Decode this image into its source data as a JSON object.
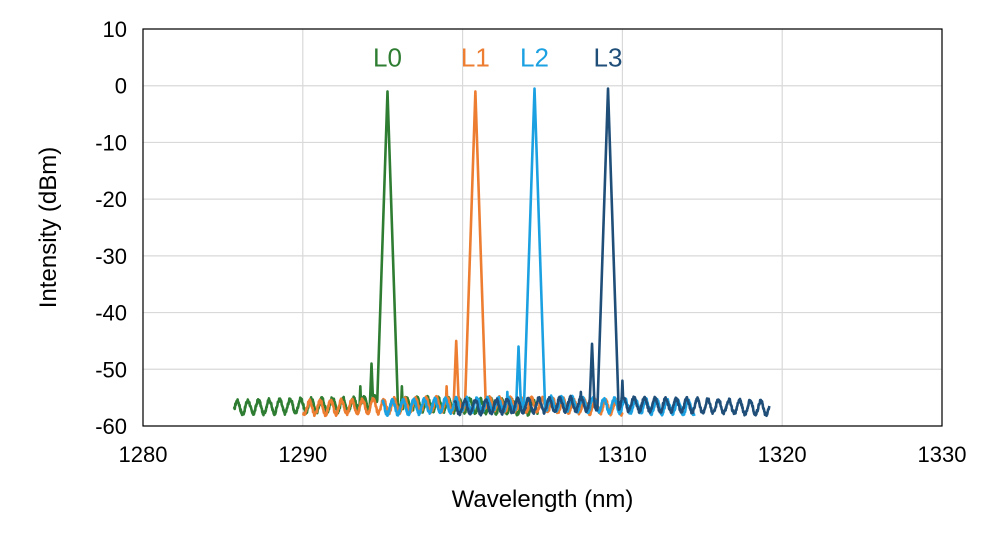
{
  "chart_data": {
    "type": "line",
    "title": "",
    "xlabel": "Wavelength (nm)",
    "ylabel": "Intensity (dBm)",
    "xlim": [
      1280,
      1330
    ],
    "ylim": [
      -60,
      10
    ],
    "xticks": [
      1280,
      1290,
      1300,
      1310,
      1320,
      1330
    ],
    "yticks": [
      10,
      0,
      -10,
      -20,
      -30,
      -40,
      -50,
      -60
    ],
    "grid": true,
    "legend": "none",
    "series": [
      {
        "name": "L0",
        "color": "#2e7d32",
        "x_range": [
          1285.7,
          1304.7
        ],
        "peak_x": 1295.3,
        "peak_y": -1,
        "side_peaks": [
          [
            1294.3,
            -49
          ],
          [
            1293.6,
            -53
          ],
          [
            1296.2,
            -53
          ]
        ],
        "noise_floor": -56,
        "label_at": [
          1295.3,
          5
        ]
      },
      {
        "name": "L1",
        "color": "#ed7d31",
        "x_range": [
          1290.0,
          1310.0
        ],
        "peak_x": 1300.8,
        "peak_y": -1,
        "side_peaks": [
          [
            1299.6,
            -45
          ],
          [
            1299.0,
            -53
          ]
        ],
        "noise_floor": -56,
        "label_at": [
          1300.8,
          5
        ]
      },
      {
        "name": "L2",
        "color": "#1ba1e2",
        "x_range": [
          1295.0,
          1314.5
        ],
        "peak_x": 1304.5,
        "peak_y": -0.5,
        "side_peaks": [
          [
            1303.5,
            -46
          ],
          [
            1302.8,
            -54
          ]
        ],
        "noise_floor": -56,
        "label_at": [
          1304.5,
          5
        ]
      },
      {
        "name": "L3",
        "color": "#1f4e79",
        "x_range": [
          1299.5,
          1319.2
        ],
        "peak_x": 1309.1,
        "peak_y": -0.5,
        "side_peaks": [
          [
            1308.1,
            -45.5
          ],
          [
            1307.4,
            -54
          ],
          [
            1310.0,
            -52
          ]
        ],
        "noise_floor": -56,
        "label_at": [
          1309.1,
          5
        ]
      }
    ]
  }
}
